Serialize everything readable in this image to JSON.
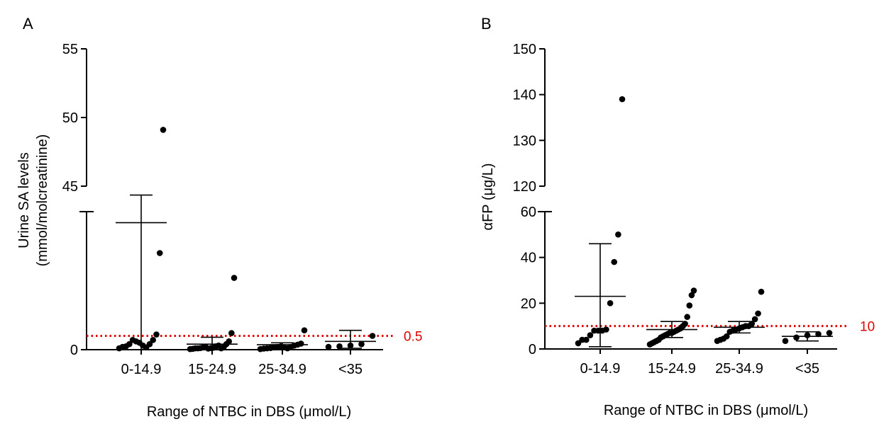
{
  "colors": {
    "ink": "#000000",
    "reference": "#e00000"
  },
  "chart_data": [
    {
      "panel": "A",
      "type": "scatter",
      "categories": [
        "0-14.9",
        "15-24.9",
        "25-34.9",
        "<35"
      ],
      "xlabel": "Range of NTBC in DBS (μmol/L)",
      "ylabel_line1": "Urine SA levels",
      "ylabel_line2": "(mmol/molcreatinine)",
      "axis_break": true,
      "ylim_lower": [
        0,
        5
      ],
      "ylim_upper": [
        45,
        55
      ],
      "yticks": [
        {
          "value": 0,
          "label": "0"
        },
        {
          "value": 45,
          "label": "45"
        },
        {
          "value": 50,
          "label": "50"
        },
        {
          "value": 55,
          "label": "55"
        }
      ],
      "reference_line": {
        "value": 0.5,
        "label": "0.5"
      },
      "groups": [
        {
          "category": "0-14.9",
          "points": [
            0.05,
            0.1,
            0.12,
            0.2,
            0.35,
            0.3,
            0.25,
            0.15,
            0.08,
            0.2,
            0.35,
            0.55,
            3.5,
            49.1
          ],
          "mean": 4.6,
          "sd_low": 0,
          "sd_high": 5.8
        },
        {
          "category": "15-24.9",
          "points": [
            0.02,
            0.03,
            0.05,
            0.05,
            0.06,
            0.08,
            0.1,
            0.04,
            0.06,
            0.07,
            0.12,
            0.15,
            0.05,
            0.09,
            0.2,
            0.3,
            0.6,
            2.6
          ],
          "mean": 0.2,
          "sd_low": 0,
          "sd_high": 0.45
        },
        {
          "category": "25-34.9",
          "points": [
            0.02,
            0.04,
            0.05,
            0.06,
            0.08,
            0.1,
            0.12,
            0.08,
            0.05,
            0.1,
            0.15,
            0.18,
            0.22,
            0.7
          ],
          "mean": 0.18,
          "sd_low": 0,
          "sd_high": 0.25
        },
        {
          "category": "<35",
          "points": [
            0.1,
            0.12,
            0.15,
            0.2,
            0.5
          ],
          "mean": 0.3,
          "sd_low": 0.05,
          "sd_high": 0.7
        }
      ]
    },
    {
      "panel": "B",
      "type": "scatter",
      "categories": [
        "0-14.9",
        "15-24.9",
        "25-34.9",
        "<35"
      ],
      "xlabel": "Range of NTBC in DBS (μmol/L)",
      "ylabel": "αFP (μg/L)",
      "axis_break": true,
      "ylim_lower": [
        0,
        60
      ],
      "ylim_upper": [
        120,
        150
      ],
      "yticks": [
        {
          "value": 0,
          "label": "0"
        },
        {
          "value": 20,
          "label": "20"
        },
        {
          "value": 40,
          "label": "40"
        },
        {
          "value": 60,
          "label": "60"
        },
        {
          "value": 120,
          "label": "120"
        },
        {
          "value": 130,
          "label": "130"
        },
        {
          "value": 140,
          "label": "140"
        },
        {
          "value": 150,
          "label": "150"
        }
      ],
      "reference_line": {
        "value": 10,
        "label": "10"
      },
      "groups": [
        {
          "category": "0-14.9",
          "points": [
            2.5,
            4,
            4,
            6,
            8,
            8,
            8,
            8.5,
            20,
            38,
            50,
            139
          ],
          "mean": 23,
          "sd_low": 1,
          "sd_high": 46
        },
        {
          "category": "15-24.9",
          "points": [
            2,
            2.5,
            3,
            3.5,
            4,
            5,
            5.5,
            6,
            6.5,
            7,
            7,
            7.5,
            8,
            8.5,
            9,
            10,
            11,
            14,
            19,
            23.5,
            25.5
          ],
          "mean": 8.5,
          "sd_low": 5,
          "sd_high": 12
        },
        {
          "category": "25-34.9",
          "points": [
            3.5,
            4,
            4.5,
            5.5,
            7.5,
            8,
            8.5,
            9,
            9.5,
            10,
            10,
            11,
            13,
            15.5,
            25
          ],
          "mean": 9.5,
          "sd_low": 7,
          "sd_high": 12
        },
        {
          "category": "<35",
          "points": [
            3.5,
            5,
            6,
            6.5,
            7
          ],
          "mean": 5.5,
          "sd_low": 3.5,
          "sd_high": 7.5
        }
      ]
    }
  ]
}
